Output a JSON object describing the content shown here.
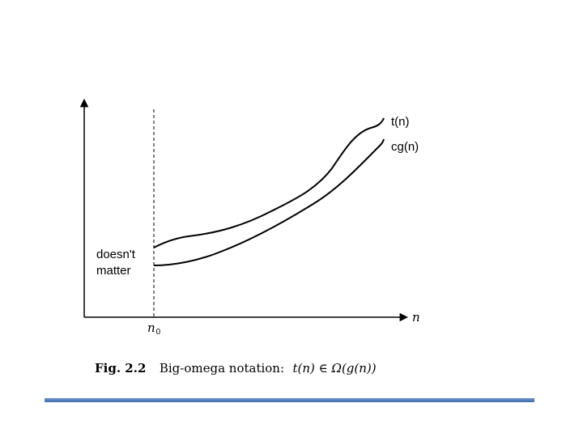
{
  "curve_labels": {
    "upper": "t(n)",
    "lower": "cg(n)"
  },
  "region_label": "doesn't\nmatter",
  "axis_labels": {
    "x": "n",
    "threshold": "n",
    "threshold_subscript": "0"
  },
  "caption": {
    "fig_label": "Fig. 2.2",
    "text": "Big-omega notation:",
    "formula_prefix": "t(n) ∈ ",
    "formula_omega": "Ω",
    "formula_suffix": "(g(n))"
  },
  "colors": {
    "line": "#000000",
    "bottom_bar": "#4a76bb"
  }
}
